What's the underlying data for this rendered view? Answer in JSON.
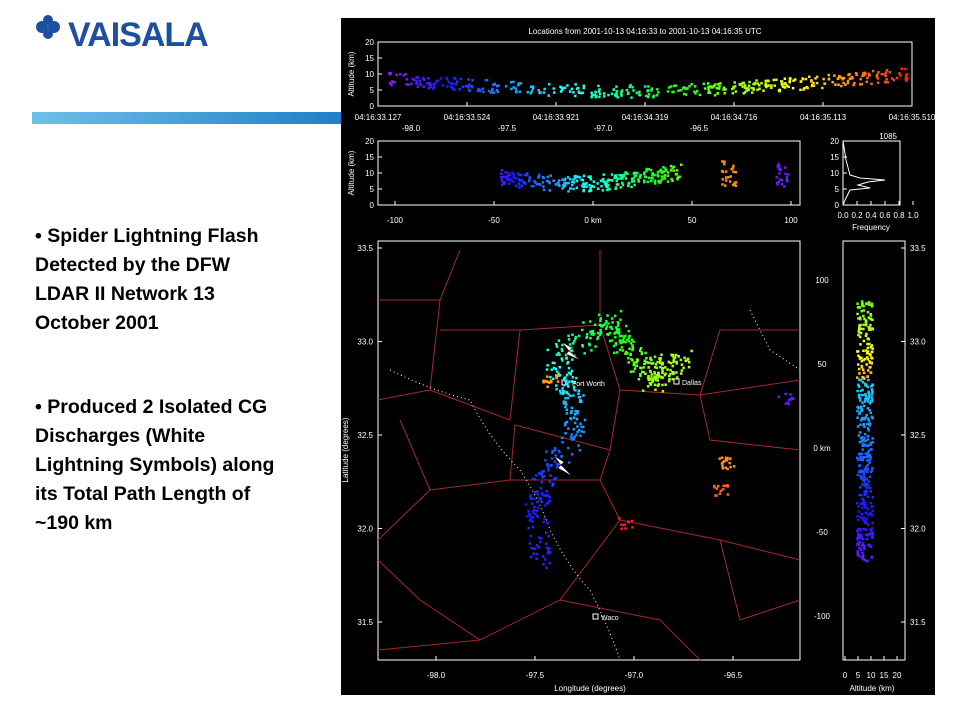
{
  "logo": "VAISALA",
  "bullets": [
    {
      "lines": [
        "• Spider Lightning Flash",
        "Detected by the DFW",
        "LDAR II Network 13",
        "October 2001"
      ]
    },
    {
      "lines": [
        "• Produced 2 Isolated CG",
        "Discharges (White",
        "Lightning Symbols) along",
        "its Total Path Length of",
        "~190 km"
      ]
    }
  ],
  "figure": {
    "title": "Locations from 2001-10-13 04:16:33 to 2001-10-13 04:16:35 UTC",
    "altitude_label": "Altitude (km)",
    "altitude_ticks": [
      "0",
      "5",
      "10",
      "15",
      "20"
    ],
    "time_ticks": [
      "04:16:33.127",
      "04:16:33.524",
      "04:16:33.921",
      "04:16:34.319",
      "04:16:34.716",
      "04:16:35.113",
      "04:16:35.510"
    ],
    "top_lon_ticks": [
      "-98.0",
      "-97.5",
      "-97.0",
      "-96.5"
    ],
    "km_ticks": [
      "-100",
      "-50",
      "0 km",
      "50",
      "100"
    ],
    "histogram_count": "1085",
    "frequency_ticks": [
      "0.0",
      "0.2",
      "0.4",
      "0.6",
      "0.8",
      "1.0"
    ],
    "frequency_label": "Frequency",
    "lat_ticks": [
      "33.5",
      "33.0",
      "32.5",
      "32.0",
      "31.5"
    ],
    "lat_label": "Latitude (degrees)",
    "lon_ticks": [
      "-98.0",
      "-97.5",
      "-97.0",
      "-96.5"
    ],
    "lon_label": "Longitude (degrees)",
    "ns_km_ticks": [
      "100",
      "50",
      "0 km",
      "-50",
      "-100"
    ],
    "cities": [
      "Fort Worth",
      "Dallas",
      "Waco"
    ]
  }
}
